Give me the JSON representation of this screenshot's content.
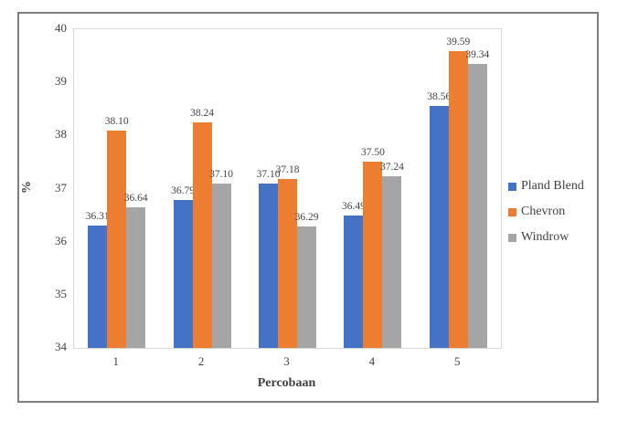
{
  "chart_data": {
    "type": "bar",
    "title": "",
    "xlabel": "Percobaan",
    "ylabel": "%",
    "categories": [
      "1",
      "2",
      "3",
      "4",
      "5"
    ],
    "series": [
      {
        "name": "Pland Blend",
        "color": "#4472C4",
        "values": [
          36.31,
          36.79,
          37.1,
          36.49,
          38.56
        ]
      },
      {
        "name": "Chevron",
        "color": "#ED7D31",
        "values": [
          38.1,
          38.24,
          37.18,
          37.5,
          39.59
        ]
      },
      {
        "name": "Windrow",
        "color": "#A5A5A5",
        "values": [
          36.64,
          37.1,
          36.29,
          37.24,
          39.34
        ]
      }
    ],
    "ylim": [
      34,
      40
    ],
    "yticks": [
      34,
      35,
      36,
      37,
      38,
      39,
      40
    ],
    "grid": false,
    "data_labels": true,
    "label_decimals": 2,
    "legend_position": "right",
    "frame_border_color": "#7f7f7f",
    "plot_border_color": "#d9d9d9",
    "text_color": "#404040"
  }
}
